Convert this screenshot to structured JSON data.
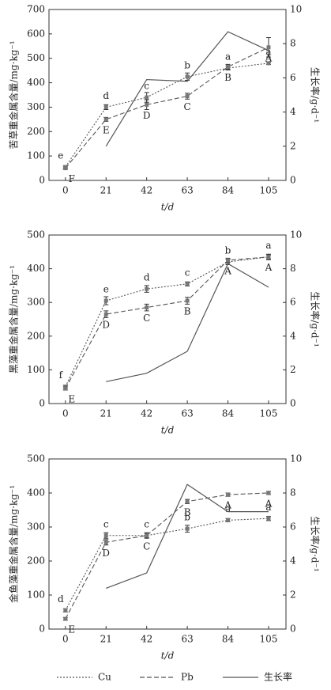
{
  "chart_data": [
    {
      "type": "line",
      "ylabel": "苦草重金属含量/mg·kg⁻¹",
      "y2label": "生长率/g·d⁻¹",
      "xlabel": "t/d",
      "x": [
        0,
        21,
        42,
        63,
        84,
        105
      ],
      "xlim": [
        -8.5,
        114
      ],
      "xticks": [
        0,
        21,
        42,
        63,
        84,
        105
      ],
      "ylim": [
        0,
        700
      ],
      "yticks": [
        0,
        100,
        200,
        300,
        400,
        500,
        600,
        700
      ],
      "y2lim": [
        0,
        10
      ],
      "y2ticks": [
        0,
        2,
        4,
        6,
        8,
        10
      ],
      "series": [
        {
          "dash": "dotted",
          "color": "#555555",
          "values": [
            55,
            300,
            340,
            425,
            460,
            480
          ],
          "errors": [
            5,
            10,
            20,
            15,
            8,
            5
          ],
          "point_labels": [
            "e",
            "d",
            "c",
            "b",
            "a",
            "a"
          ]
        },
        {
          "dash": "dashed",
          "color": "#555555",
          "values": [
            50,
            250,
            310,
            345,
            465,
            545
          ],
          "errors": [
            5,
            8,
            20,
            12,
            10,
            40
          ],
          "point_labels": [
            "F",
            "E",
            "D",
            "C",
            "B",
            "A"
          ]
        },
        {
          "dash": "solid",
          "color": "#555555",
          "axis": "y2",
          "values": [
            null,
            2.0,
            5.9,
            5.8,
            8.7,
            7.6
          ]
        }
      ]
    },
    {
      "type": "line",
      "ylabel": "黑藻重金属含量/mg·kg⁻¹",
      "y2label": "生长率/g·d⁻¹",
      "xlabel": "t/d",
      "x": [
        0,
        21,
        42,
        63,
        84,
        105
      ],
      "xlim": [
        -8.5,
        114
      ],
      "xticks": [
        0,
        21,
        42,
        63,
        84,
        105
      ],
      "ylim": [
        0,
        500
      ],
      "yticks": [
        0,
        100,
        200,
        300,
        400,
        500
      ],
      "y2lim": [
        0,
        10
      ],
      "y2ticks": [
        0,
        2,
        4,
        6,
        8,
        10
      ],
      "series": [
        {
          "dash": "dotted",
          "color": "#555555",
          "values": [
            50,
            305,
            340,
            355,
            420,
            435
          ],
          "errors": [
            5,
            12,
            10,
            6,
            8,
            8
          ],
          "point_labels": [
            "f",
            "e",
            "d",
            "c",
            "b",
            "a"
          ]
        },
        {
          "dash": "dashed",
          "color": "#555555",
          "values": [
            45,
            265,
            285,
            305,
            425,
            435
          ],
          "errors": [
            5,
            10,
            10,
            10,
            6,
            6
          ],
          "point_labels": [
            "E",
            "D",
            "C",
            "B",
            "A",
            "A"
          ]
        },
        {
          "dash": "solid",
          "color": "#555555",
          "axis": "y2",
          "values": [
            null,
            1.3,
            1.8,
            3.1,
            8.3,
            6.9
          ]
        }
      ]
    },
    {
      "type": "line",
      "ylabel": "金鱼藻重金属含量/mg·kg⁻¹",
      "y2label": "生长率/g·d⁻¹",
      "xlabel": "t/d",
      "x": [
        0,
        21,
        42,
        63,
        84,
        105
      ],
      "xlim": [
        -8.5,
        114
      ],
      "xticks": [
        0,
        21,
        42,
        63,
        84,
        105
      ],
      "ylim": [
        0,
        500
      ],
      "yticks": [
        0,
        100,
        200,
        300,
        400,
        500
      ],
      "y2lim": [
        0,
        10
      ],
      "y2ticks": [
        0,
        2,
        4,
        6,
        8,
        10
      ],
      "series": [
        {
          "dash": "dotted",
          "color": "#555555",
          "values": [
            55,
            275,
            275,
            295,
            320,
            325
          ],
          "errors": [
            5,
            8,
            6,
            10,
            5,
            6
          ],
          "point_labels": [
            "d",
            "c",
            "c",
            "b",
            "a",
            "a"
          ]
        },
        {
          "dash": "dashed",
          "color": "#555555",
          "values": [
            30,
            255,
            275,
            375,
            395,
            400
          ],
          "errors": [
            4,
            8,
            8,
            6,
            5,
            5
          ],
          "point_labels": [
            "E",
            "D",
            "C",
            "B",
            "A",
            "A"
          ]
        },
        {
          "dash": "solid",
          "color": "#555555",
          "axis": "y2",
          "values": [
            null,
            2.4,
            3.3,
            8.5,
            6.9,
            6.9
          ]
        }
      ]
    }
  ],
  "legend": [
    {
      "name": "Cu",
      "dash": "dotted"
    },
    {
      "name": "Pb",
      "dash": "dashed"
    },
    {
      "name": "生长率",
      "dash": "solid"
    }
  ]
}
